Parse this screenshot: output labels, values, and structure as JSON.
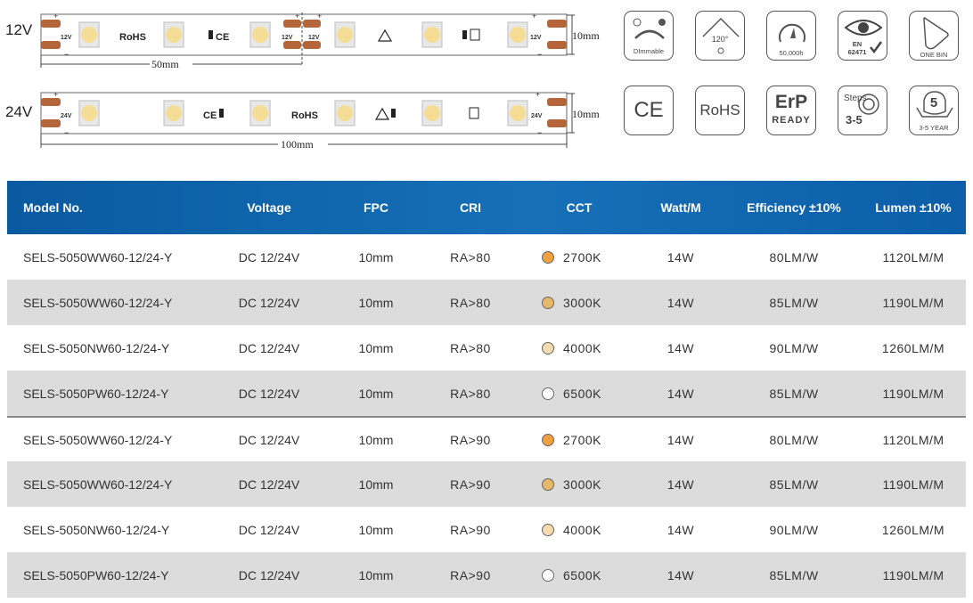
{
  "strips": [
    {
      "voltage": "12V",
      "pad_text": "12V",
      "cut_length": "50mm",
      "width_label": "10mm",
      "marks": {
        "rohs": "RoHS",
        "ce": "CE",
        "pad": "12V"
      }
    },
    {
      "voltage": "24V",
      "pad_text": "24V",
      "cut_length": "100mm",
      "width_label": "10mm",
      "marks": {
        "rohs": "RoHS",
        "ce": "CE",
        "pad": "24V"
      }
    }
  ],
  "strip_signs": {
    "plus": "+",
    "minus": "−"
  },
  "icons": [
    {
      "name": "dimmable",
      "caption": "DImmable"
    },
    {
      "name": "angle",
      "caption": "120°"
    },
    {
      "name": "lifetime",
      "caption": "50,000h"
    },
    {
      "name": "eye",
      "caption": "EN",
      "caption2": "62471"
    },
    {
      "name": "one-bin",
      "caption": "ONE BIN"
    },
    {
      "name": "ce",
      "caption": "CE"
    },
    {
      "name": "rohs",
      "caption": "RoHS"
    },
    {
      "name": "erp",
      "caption": "ErP",
      "caption2": "READY"
    },
    {
      "name": "steps",
      "caption": "Steps",
      "caption2": "3-5"
    },
    {
      "name": "warranty",
      "caption": "5",
      "caption2": "3-5 YEAR"
    }
  ],
  "table": {
    "headers": [
      "Model No.",
      "Voltage",
      "FPC",
      "CRI",
      "CCT",
      "Watt/M",
      "Efficiency ±10%",
      "Lumen ±10%"
    ],
    "rows": [
      {
        "model": "SELS-5050WW60-12/24-Y",
        "voltage": "DC 12/24V",
        "fpc": "10mm",
        "cri": "RA>80",
        "cct": "2700K",
        "color": "#f0a040",
        "watt": "14W",
        "eff": "80LM/W",
        "lumen": "1120LM/M"
      },
      {
        "model": "SELS-5050WW60-12/24-Y",
        "voltage": "DC 12/24V",
        "fpc": "10mm",
        "cri": "RA>80",
        "cct": "3000K",
        "color": "#e8b86a",
        "watt": "14W",
        "eff": "85LM/W",
        "lumen": "1190LM/M"
      },
      {
        "model": "SELS-5050NW60-12/24-Y",
        "voltage": "DC 12/24V",
        "fpc": "10mm",
        "cri": "RA>80",
        "cct": "4000K",
        "color": "#f5dcb0",
        "watt": "14W",
        "eff": "90LM/W",
        "lumen": "1260LM/M"
      },
      {
        "model": "SELS-5050PW60-12/24-Y",
        "voltage": "DC 12/24V",
        "fpc": "10mm",
        "cri": "RA>80",
        "cct": "6500K",
        "color": "#ffffff",
        "watt": "14W",
        "eff": "85LM/W",
        "lumen": "1190LM/M"
      },
      {
        "model": "SELS-5050WW60-12/24-Y",
        "voltage": "DC 12/24V",
        "fpc": "10mm",
        "cri": "RA>90",
        "cct": "2700K",
        "color": "#f0a040",
        "watt": "14W",
        "eff": "80LM/W",
        "lumen": "1120LM/M"
      },
      {
        "model": "SELS-5050WW60-12/24-Y",
        "voltage": "DC 12/24V",
        "fpc": "10mm",
        "cri": "RA>90",
        "cct": "3000K",
        "color": "#e8b86a",
        "watt": "14W",
        "eff": "85LM/W",
        "lumen": "1190LM/M"
      },
      {
        "model": "SELS-5050NW60-12/24-Y",
        "voltage": "DC 12/24V",
        "fpc": "10mm",
        "cri": "RA>90",
        "cct": "4000K",
        "color": "#f5dcb0",
        "watt": "14W",
        "eff": "90LM/W",
        "lumen": "1260LM/M"
      },
      {
        "model": "SELS-5050PW60-12/24-Y",
        "voltage": "DC 12/24V",
        "fpc": "10mm",
        "cri": "RA>90",
        "cct": "6500K",
        "color": "#ffffff",
        "watt": "14W",
        "eff": "85LM/W",
        "lumen": "1190LM/M"
      }
    ]
  },
  "colors": {
    "header_blue": "#1670b8",
    "copper": "#b5653a",
    "led": "#f5dd95",
    "row_alt": "#dcdcdc"
  }
}
